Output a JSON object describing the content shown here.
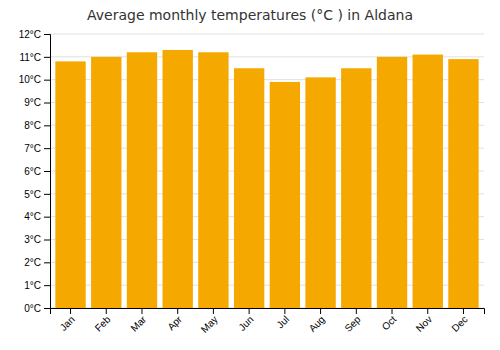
{
  "chart_data": {
    "type": "bar",
    "title": "Average monthly temperatures (°C ) in Aldana",
    "categories": [
      "Jan",
      "Feb",
      "Mar",
      "Apr",
      "May",
      "Jun",
      "Jul",
      "Aug",
      "Sep",
      "Oct",
      "Nov",
      "Dec"
    ],
    "values": [
      10.8,
      11.0,
      11.2,
      11.3,
      11.2,
      10.5,
      9.9,
      10.1,
      10.5,
      11.0,
      11.1,
      10.9
    ],
    "color": "#F5A800",
    "ylim": [
      0,
      12
    ],
    "yticks": [
      {
        "value": 0,
        "label": "0°C"
      },
      {
        "value": 1,
        "label": "1°C"
      },
      {
        "value": 2,
        "label": "2°C"
      },
      {
        "value": 3,
        "label": "3°C"
      },
      {
        "value": 4,
        "label": "4°C"
      },
      {
        "value": 5,
        "label": "5°C"
      },
      {
        "value": 6,
        "label": "6°C"
      },
      {
        "value": 7,
        "label": "7°C"
      },
      {
        "value": 8,
        "label": "8°C"
      },
      {
        "value": 9,
        "label": "9°C"
      },
      {
        "value": 10,
        "label": "10°C"
      },
      {
        "value": 11,
        "label": "11°C"
      },
      {
        "value": 12,
        "label": "12°C"
      }
    ],
    "grid": true
  }
}
